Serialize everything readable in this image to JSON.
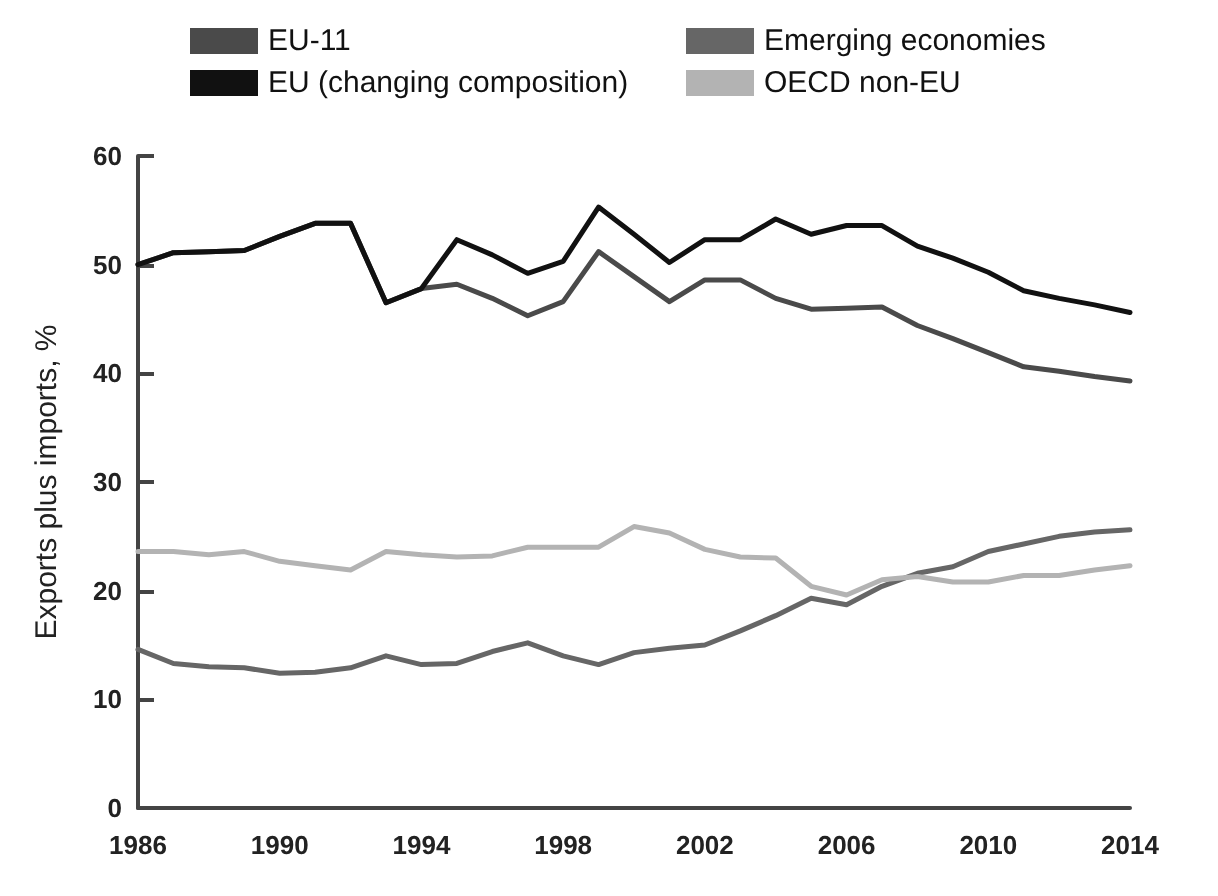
{
  "chart_data": {
    "type": "line",
    "ylabel": "Exports plus imports, %",
    "x": [
      1986,
      1987,
      1988,
      1989,
      1990,
      1991,
      1992,
      1993,
      1994,
      1995,
      1996,
      1997,
      1998,
      1999,
      2000,
      2001,
      2002,
      2003,
      2004,
      2005,
      2006,
      2007,
      2008,
      2009,
      2010,
      2011,
      2012,
      2013,
      2014
    ],
    "xlim": [
      1986,
      2014
    ],
    "xticks": [
      1986,
      1990,
      1994,
      1998,
      2002,
      2006,
      2010,
      2014
    ],
    "ylim": [
      0,
      60
    ],
    "yticks": [
      0,
      10,
      20,
      30,
      40,
      50,
      60
    ],
    "grid": false,
    "legend": "top",
    "marker": "none",
    "line_style": "solid",
    "series": [
      {
        "name": "EU-11",
        "color": "#4a4a4a",
        "values": [
          50,
          51.1,
          51.2,
          51.3,
          52.6,
          53.8,
          53.8,
          46.5,
          47.8,
          48.2,
          46.9,
          45.3,
          46.6,
          51.2,
          48.9,
          46.6,
          48.6,
          48.6,
          46.9,
          45.9,
          46,
          46.1,
          44.4,
          43.2,
          41.9,
          40.6,
          40.2,
          39.7,
          39.3
        ]
      },
      {
        "name": "EU (changing composition)",
        "color": "#111111",
        "values": [
          50,
          51.1,
          51.2,
          51.3,
          52.6,
          53.8,
          53.8,
          46.5,
          47.8,
          52.3,
          50.9,
          49.2,
          50.3,
          55.3,
          52.8,
          50.2,
          52.3,
          52.3,
          54.2,
          52.8,
          53.6,
          53.6,
          51.7,
          50.6,
          49.3,
          47.6,
          46.9,
          46.3,
          45.6
        ]
      },
      {
        "name": "Emerging economies",
        "color": "#666666",
        "values": [
          14.6,
          13.3,
          13,
          12.9,
          12.4,
          12.5,
          12.9,
          14,
          13.2,
          13.3,
          14.4,
          15.2,
          14,
          13.2,
          14.3,
          14.7,
          15,
          16.3,
          17.7,
          19.3,
          18.7,
          20.4,
          21.6,
          22.2,
          23.6,
          24.3,
          25,
          25.4,
          25.6
        ]
      },
      {
        "name": "OECD non-EU",
        "color": "#b3b3b3",
        "values": [
          23.6,
          23.6,
          23.3,
          23.6,
          22.7,
          22.3,
          21.9,
          23.6,
          23.3,
          23.1,
          23.2,
          24,
          24,
          24,
          25.9,
          25.3,
          23.8,
          23.1,
          23,
          20.4,
          19.6,
          21,
          21.3,
          20.8,
          20.8,
          21.4,
          21.4,
          21.9,
          22.3
        ]
      }
    ]
  }
}
